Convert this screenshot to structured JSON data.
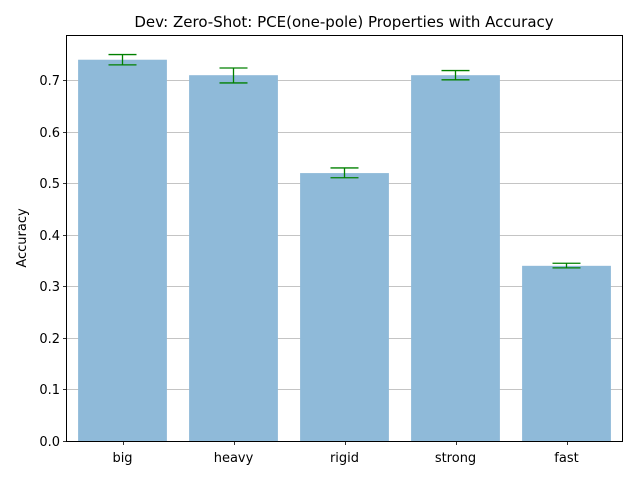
{
  "chart_data": {
    "type": "bar",
    "title": "Dev: Zero-Shot: PCE(one-pole) Properties with Accuracy",
    "xlabel": "",
    "ylabel": "Accuracy",
    "categories": [
      "big",
      "heavy",
      "rigid",
      "strong",
      "fast"
    ],
    "values": [
      0.74,
      0.71,
      0.52,
      0.71,
      0.34
    ],
    "error_low": [
      0.73,
      0.695,
      0.511,
      0.701,
      0.336
    ],
    "error_high": [
      0.75,
      0.724,
      0.53,
      0.719,
      0.345
    ],
    "ylim": [
      0,
      0.788
    ],
    "yticks": [
      "0.0",
      "0.1",
      "0.2",
      "0.3",
      "0.4",
      "0.5",
      "0.6",
      "0.7"
    ],
    "grid": "y",
    "bar_color": "#8fbad9",
    "error_color": "#008000"
  }
}
